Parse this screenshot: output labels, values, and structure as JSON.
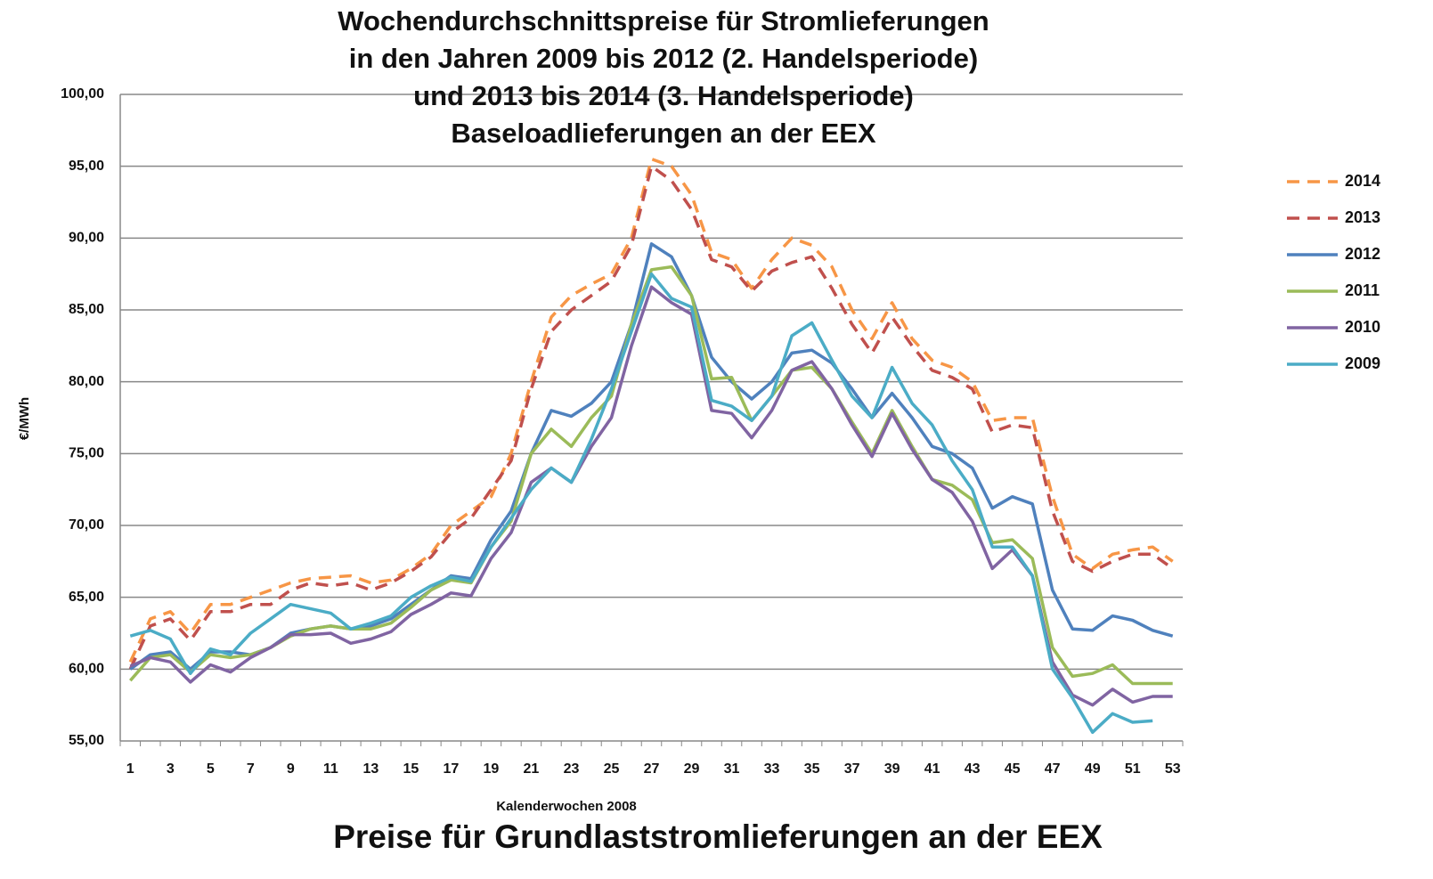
{
  "chart_data": {
    "type": "line",
    "title": [
      "Wochendurchschnittspreise für Stromlieferungen",
      "in den Jahren 2009 bis 2012 (2. Handelsperiode)",
      "und 2013 bis 2014 (3. Handelsperiode)",
      "Baseloadlieferungen an der EEX"
    ],
    "subtitle": "Preise für Grundlaststromlieferungen an der EEX",
    "xlabel": "Kalenderwochen 2008",
    "ylabel": "€/MWh",
    "categories": [
      1,
      null,
      3,
      null,
      5,
      null,
      7,
      null,
      9,
      null,
      11,
      null,
      13,
      null,
      15,
      null,
      17,
      null,
      19,
      null,
      21,
      null,
      23,
      null,
      25,
      null,
      27,
      null,
      29,
      null,
      31,
      null,
      33,
      null,
      35,
      null,
      37,
      null,
      39,
      null,
      41,
      null,
      43,
      null,
      45,
      null,
      47,
      null,
      49,
      null,
      51,
      null,
      53
    ],
    "ylim": [
      55,
      100
    ],
    "yticks": [
      {
        "value": 55,
        "label": "55,00"
      },
      {
        "value": 60,
        "label": "60,00"
      },
      {
        "value": 65,
        "label": "65,00"
      },
      {
        "value": 70,
        "label": "70,00"
      },
      {
        "value": 75,
        "label": "75,00"
      },
      {
        "value": 80,
        "label": "80,00"
      },
      {
        "value": 85,
        "label": "85,00"
      },
      {
        "value": 90,
        "label": "90,00"
      },
      {
        "value": 95,
        "label": "95,00"
      },
      {
        "value": 100,
        "label": "100,00"
      }
    ],
    "grid": true,
    "legend": "right",
    "series": [
      {
        "name": "2014",
        "color": "#f79646",
        "line_style": "dashed",
        "values": [
          60.5,
          63.5,
          64,
          62.5,
          64.5,
          64.5,
          65,
          65.5,
          66,
          66.3,
          66.4,
          66.5,
          66,
          66.2,
          67,
          68,
          70,
          71,
          72,
          75,
          80,
          84.5,
          86,
          86.8,
          87.5,
          90,
          95.5,
          95,
          93,
          89,
          88.5,
          86.5,
          88.5,
          90,
          89.5,
          88,
          85,
          83,
          85.5,
          83,
          81.5,
          81,
          80,
          77.3,
          77.5,
          77.5,
          72,
          68,
          67,
          68,
          68.3,
          68.5,
          67.5
        ]
      },
      {
        "name": "2013",
        "color": "#c0504d",
        "line_style": "dashed",
        "values": [
          60,
          63,
          63.5,
          62,
          64,
          64,
          64.5,
          64.5,
          65.5,
          66,
          65.8,
          66,
          65.5,
          66,
          66.8,
          67.8,
          69.5,
          70.5,
          72.5,
          74.5,
          79.5,
          83.5,
          85,
          86,
          87,
          89.5,
          95,
          94,
          92,
          88.5,
          88,
          86.3,
          87.7,
          88.3,
          88.7,
          86.5,
          84,
          82,
          84.5,
          82.5,
          80.8,
          80.3,
          79.5,
          76.5,
          77,
          76.8,
          71,
          67.5,
          66.8,
          67.5,
          68,
          68,
          67
        ]
      },
      {
        "name": "2012",
        "color": "#4f81bd",
        "line_style": "solid",
        "values": [
          60,
          61,
          61.2,
          60,
          61.2,
          61.2,
          61,
          61.5,
          62.5,
          62.8,
          63,
          62.8,
          63,
          63.5,
          64.5,
          65.5,
          66.5,
          66.3,
          69,
          71,
          75,
          78,
          77.6,
          78.5,
          80,
          84,
          89.6,
          88.7,
          86,
          81.7,
          80,
          78.8,
          80,
          82,
          82.2,
          81.3,
          79.5,
          77.5,
          79.2,
          77.5,
          75.5,
          75,
          74,
          71.2,
          72,
          71.5,
          65.5,
          62.8,
          62.7,
          63.7,
          63.4,
          62.7,
          62.3
        ]
      },
      {
        "name": "2011",
        "color": "#9bbb59",
        "line_style": "solid",
        "values": [
          59.2,
          60.8,
          61,
          59.8,
          61,
          60.8,
          61,
          61.5,
          62.3,
          62.8,
          63,
          62.8,
          62.8,
          63.2,
          64.3,
          65.5,
          66.2,
          66,
          68.5,
          70.3,
          75,
          76.7,
          75.5,
          77.5,
          79,
          84,
          87.8,
          88,
          86,
          80.2,
          80.3,
          77.3,
          79,
          80.8,
          81,
          79.5,
          77.2,
          75,
          78,
          75.5,
          73.2,
          72.8,
          71.8,
          68.8,
          69,
          67.7,
          61.5,
          59.5,
          59.7,
          60.3,
          59,
          59,
          59
        ]
      },
      {
        "name": "2010",
        "color": "#8064a2",
        "line_style": "solid",
        "values": [
          60.2,
          60.8,
          60.5,
          59.1,
          60.3,
          59.8,
          60.8,
          61.5,
          62.4,
          62.4,
          62.5,
          61.8,
          62.1,
          62.6,
          63.8,
          64.5,
          65.3,
          65.1,
          67.7,
          69.5,
          73,
          74,
          73,
          75.5,
          77.5,
          82.5,
          86.6,
          85.5,
          84.7,
          78,
          77.8,
          76.1,
          78,
          80.8,
          81.4,
          79.5,
          77,
          74.8,
          77.8,
          75.3,
          73.2,
          72.3,
          70.3,
          67,
          68.3,
          66.5,
          60.5,
          58.2,
          57.5,
          58.6,
          57.7,
          58.1,
          58.1
        ]
      },
      {
        "name": "2009",
        "color": "#4bacc6",
        "line_style": "solid",
        "values": [
          62.3,
          62.7,
          62.1,
          59.7,
          61.4,
          61,
          62.5,
          63.5,
          64.5,
          64.2,
          63.9,
          62.8,
          63.2,
          63.7,
          65,
          65.8,
          66.4,
          66.1,
          68.5,
          70.5,
          72.5,
          74,
          73,
          76,
          79.5,
          83.5,
          87.5,
          85.8,
          85.2,
          78.7,
          78.3,
          77.3,
          79,
          83.2,
          84.1,
          81.5,
          79,
          77.5,
          81,
          78.5,
          77,
          74.5,
          72.5,
          68.5,
          68.5,
          66.5,
          60,
          58,
          55.6,
          56.9,
          56.3,
          56.4,
          null
        ]
      }
    ]
  }
}
